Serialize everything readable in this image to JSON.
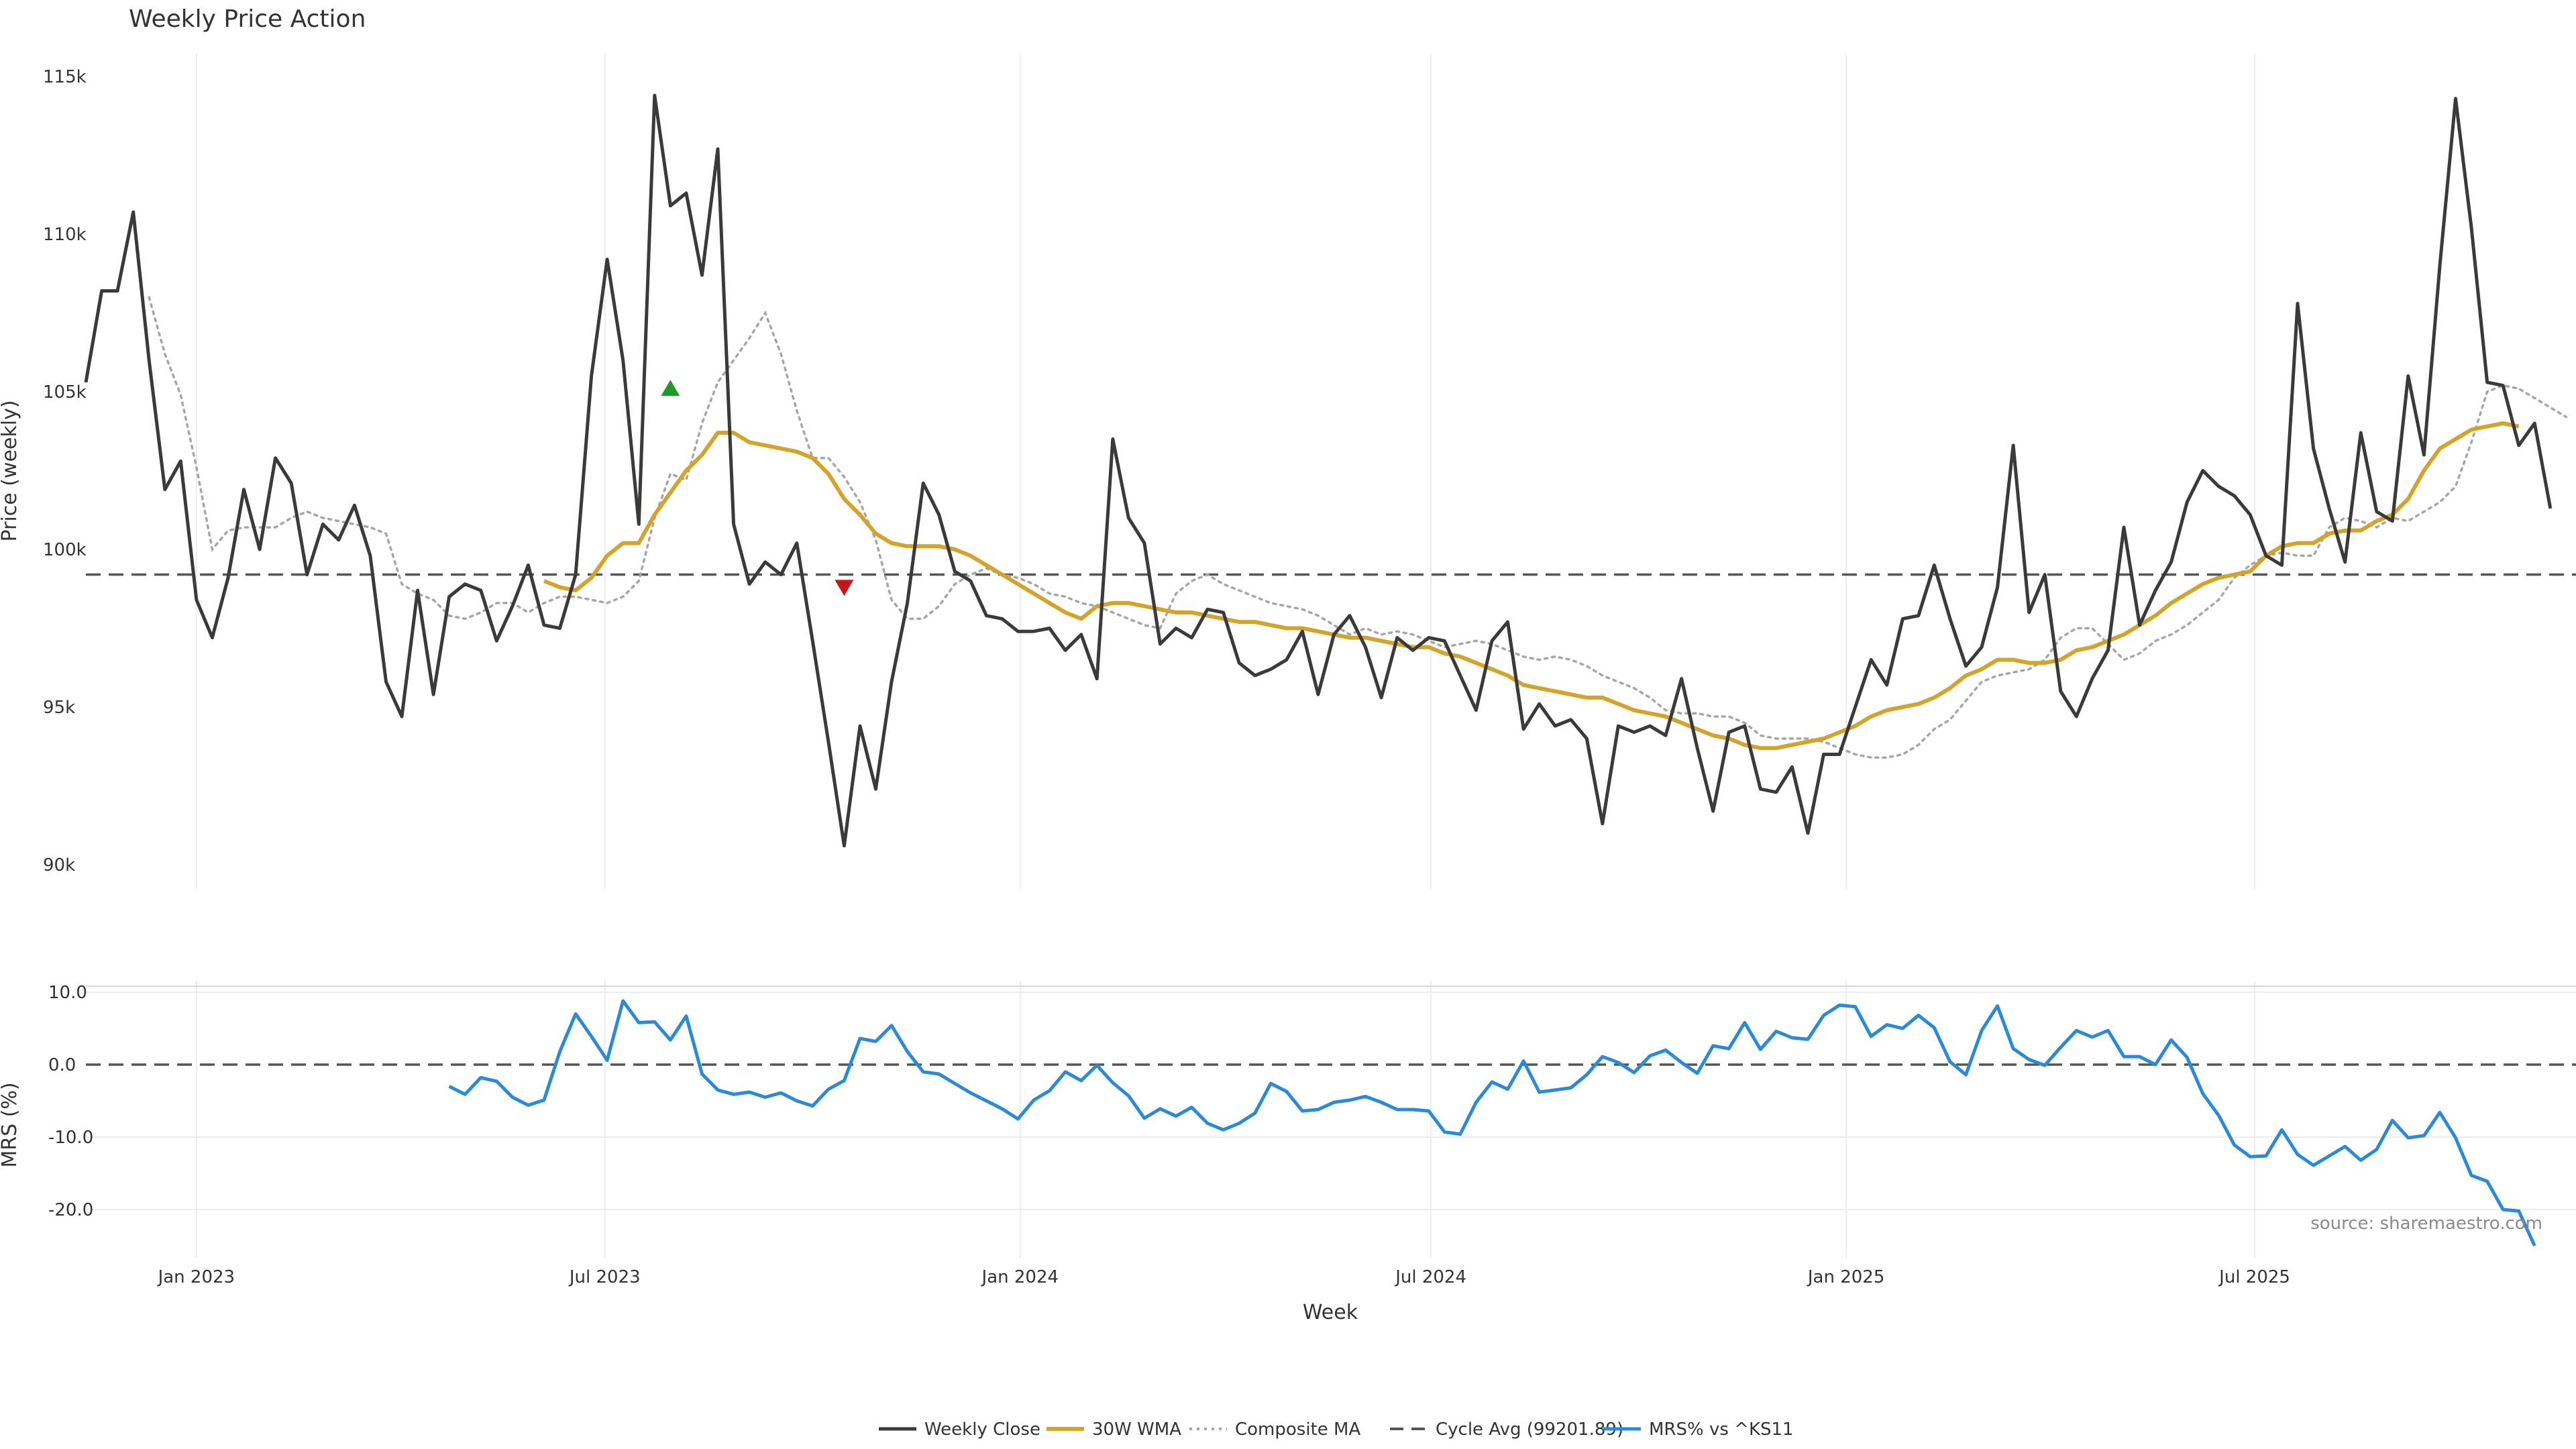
{
  "colors": {
    "close": "#3a3a3a",
    "wma": "#d4a32a",
    "composite": "#a6a6a6",
    "cycle": "#555555",
    "mrs": "#2a8ad8",
    "buy_marker": "#1f9a2a",
    "sell_marker": "#c8141b",
    "grid": "#ececec"
  },
  "chart_data": [
    {
      "type": "line",
      "title": "Weekly Price Action",
      "xlabel": "",
      "ylabel": "Price (weekly)",
      "x_start": "2022-11-13",
      "x_step_days": 7,
      "xlim": [
        "2022-11-13",
        "2025-11-09"
      ],
      "ylim": [
        89000,
        116000
      ],
      "yticks": [
        90000,
        95000,
        100000,
        105000,
        110000,
        115000
      ],
      "ytick_labels": [
        "90k",
        "95k",
        "100k",
        "105k",
        "110k",
        "115k"
      ],
      "xtick_dates": [
        "2023-01-01",
        "2023-07-01",
        "2024-01-01",
        "2024-07-01",
        "2025-01-01",
        "2025-07-01"
      ],
      "xtick_labels": [
        "Jan 2023",
        "Jul 2023",
        "Jan 2024",
        "Jul 2024",
        "Jan 2025",
        "Jul 2025"
      ],
      "grid": true,
      "series": [
        {
          "name": "Weekly Close",
          "values": [
            105300,
            108200,
            108200,
            110700,
            106000,
            101900,
            102800,
            98400,
            97200,
            99100,
            101900,
            100000,
            102900,
            102100,
            99200,
            100800,
            100300,
            101400,
            99800,
            95800,
            94700,
            98700,
            95400,
            98500,
            98900,
            98700,
            97100,
            98200,
            99500,
            97600,
            97500,
            99200,
            105500,
            109200,
            106000,
            100800,
            114400,
            110900,
            111300,
            108700,
            112700,
            100800,
            98900,
            99600,
            99200,
            100200,
            97100,
            93900,
            90600,
            94400,
            92400,
            95800,
            98300,
            102100,
            101100,
            99300,
            99000,
            97900,
            97800,
            97400,
            97400,
            97500,
            96800,
            97300,
            95900,
            103500,
            101000,
            100200,
            97000,
            97500,
            97200,
            98100,
            98000,
            96400,
            96000,
            96200,
            96500,
            97400,
            95400,
            97300,
            97900,
            96900,
            95300,
            97200,
            96800,
            97200,
            97100,
            96000,
            94900,
            97100,
            97700,
            94300,
            95100,
            94400,
            94600,
            94000,
            91300,
            94400,
            94200,
            94400,
            94100,
            95900,
            93700,
            91700,
            94200,
            94400,
            92400,
            92300,
            93100,
            91000,
            93500,
            93500,
            95000,
            96500,
            95700,
            97800,
            97900,
            99500,
            97800,
            96300,
            96900,
            98800,
            103300,
            98000,
            99200,
            95500,
            94700,
            95900,
            96800,
            100700,
            97600,
            98700,
            99600,
            101500,
            102500,
            102000,
            101700,
            101100,
            99800,
            99500,
            107800,
            103200,
            101300,
            99600,
            103700,
            101200,
            100900,
            105500,
            103000,
            109000,
            114300,
            110200,
            105300,
            105200,
            103300,
            104000,
            101300
          ]
        },
        {
          "name": "30W WMA",
          "start_index": 29,
          "values": [
            99000,
            98800,
            98700,
            99100,
            99800,
            100200,
            100200,
            101100,
            101800,
            102500,
            103000,
            103700,
            103700,
            103400,
            103300,
            103200,
            103100,
            102900,
            102400,
            101600,
            101100,
            100500,
            100200,
            100100,
            100100,
            100100,
            100000,
            99800,
            99500,
            99200,
            98900,
            98600,
            98300,
            98000,
            97800,
            98200,
            98300,
            98300,
            98200,
            98100,
            98000,
            98000,
            97900,
            97800,
            97700,
            97700,
            97600,
            97500,
            97500,
            97400,
            97300,
            97200,
            97200,
            97100,
            97000,
            96900,
            96900,
            96700,
            96600,
            96400,
            96200,
            96000,
            95700,
            95600,
            95500,
            95400,
            95300,
            95300,
            95100,
            94900,
            94800,
            94700,
            94500,
            94300,
            94100,
            94000,
            93800,
            93700,
            93700,
            93800,
            93900,
            94000,
            94200,
            94400,
            94700,
            94900,
            95000,
            95100,
            95300,
            95600,
            96000,
            96200,
            96500,
            96500,
            96400,
            96400,
            96500,
            96800,
            96900,
            97100,
            97300,
            97600,
            97900,
            98300,
            98600,
            98900,
            99100,
            99200,
            99300,
            99800,
            100100,
            100200,
            100200,
            100500,
            100600,
            100600,
            100900,
            101100,
            101600,
            102500,
            103200,
            103500,
            103800,
            103900,
            104000,
            103900
          ]
        },
        {
          "name": "Composite MA",
          "start_index": 4,
          "values": [
            108000,
            106200,
            104900,
            102600,
            100000,
            100600,
            100700,
            100700,
            100700,
            101000,
            101200,
            101000,
            100900,
            100800,
            100700,
            100500,
            98900,
            98600,
            98400,
            97900,
            97800,
            98000,
            98300,
            98300,
            98000,
            98300,
            98500,
            98500,
            98400,
            98300,
            98500,
            99000,
            101000,
            102400,
            102200,
            104000,
            105300,
            106000,
            106700,
            107500,
            106200,
            104400,
            102900,
            102900,
            102300,
            101500,
            100300,
            98400,
            97800,
            97800,
            98200,
            98900,
            99200,
            99400,
            99200,
            99100,
            98900,
            98600,
            98500,
            98300,
            98200,
            98000,
            97800,
            97600,
            97500,
            98600,
            99000,
            99200,
            98900,
            98700,
            98500,
            98300,
            98200,
            98100,
            97900,
            97600,
            97300,
            97500,
            97300,
            97400,
            97300,
            97100,
            96900,
            97000,
            97100,
            97000,
            96800,
            96600,
            96500,
            96600,
            96500,
            96300,
            96000,
            95800,
            95600,
            95300,
            94900,
            94800,
            94800,
            94700,
            94700,
            94500,
            94100,
            94000,
            94000,
            94000,
            93900,
            93700,
            93500,
            93400,
            93400,
            93500,
            93800,
            94300,
            94600,
            95200,
            95800,
            96000,
            96100,
            96200,
            96500,
            97200,
            97500,
            97500,
            97000,
            96500,
            96700,
            97100,
            97300,
            97600,
            98000,
            98400,
            99100,
            99500,
            99800,
            99900,
            99800,
            99800,
            100700,
            101000,
            100900,
            100700,
            101000,
            100900,
            101200,
            101500,
            102000,
            103400,
            105000,
            105200,
            105100,
            104800,
            104500,
            104200
          ]
        },
        {
          "name": "Cycle Avg (99201.89)",
          "values": [
            99201.89
          ]
        }
      ],
      "markers": [
        {
          "index": 37,
          "value": 105100,
          "direction": "up"
        },
        {
          "index": 48,
          "value": 98800,
          "direction": "down"
        }
      ]
    },
    {
      "type": "line",
      "xlabel": "Week",
      "ylabel": "MRS (%)",
      "x_start": "2022-11-13",
      "x_step_days": 7,
      "ylim": [
        -25,
        11
      ],
      "yticks": [
        -20,
        -10,
        0,
        10
      ],
      "ytick_labels": [
        "-20.0",
        "-10.0",
        "0.0",
        "10.0"
      ],
      "series": [
        {
          "name": "MRS% vs ^KS11",
          "start_index": 23,
          "values": [
            -3.0,
            -4.1,
            -1.8,
            -2.3,
            -4.5,
            -5.6,
            -4.9,
            1.8,
            7.0,
            3.9,
            0.6,
            8.8,
            5.8,
            5.9,
            3.4,
            6.7,
            -1.3,
            -3.5,
            -4.1,
            -3.8,
            -4.5,
            -3.9,
            -5.0,
            -5.7,
            -3.4,
            -2.2,
            3.6,
            3.2,
            5.4,
            1.8,
            -1.0,
            -1.3,
            -2.6,
            -3.9,
            -5.0,
            -6.1,
            -7.5,
            -4.9,
            -3.6,
            -1.0,
            -2.2,
            -0.1,
            -2.5,
            -4.3,
            -7.4,
            -6.1,
            -7.1,
            -5.9,
            -8.1,
            -9.0,
            -8.1,
            -6.7,
            -2.6,
            -3.7,
            -6.4,
            -6.2,
            -5.2,
            -4.9,
            -4.4,
            -5.2,
            -6.2,
            -6.2,
            -6.4,
            -9.3,
            -9.6,
            -5.2,
            -2.4,
            -3.4,
            0.5,
            -3.8,
            -3.5,
            -3.2,
            -1.4,
            1.1,
            0.3,
            -1.1,
            1.2,
            2.0,
            0.3,
            -1.2,
            2.6,
            2.2,
            5.8,
            2.1,
            4.6,
            3.7,
            3.5,
            6.8,
            8.2,
            8.0,
            3.9,
            5.5,
            5.0,
            6.8,
            5.1,
            0.4,
            -1.4,
            4.7,
            8.1,
            2.2,
            0.7,
            -0.1,
            2.4,
            4.7,
            3.8,
            4.7,
            1.1,
            1.1,
            0.0,
            3.4,
            1.0,
            -4.0,
            -7.0,
            -11.1,
            -12.7,
            -12.6,
            -9.0,
            -12.4,
            -13.9,
            -12.6,
            -11.3,
            -13.2,
            -11.7,
            -7.7,
            -10.1,
            -9.8,
            -6.6,
            -10.1,
            -15.3,
            -16.1,
            -20.0,
            -20.2,
            -25.0
          ]
        },
        {
          "name": "",
          "values": [
            0
          ]
        }
      ]
    }
  ],
  "annotation": {
    "source": "source: sharemaestro.com"
  },
  "legend": {
    "position": "bottom-center",
    "items": [
      {
        "label": "Weekly Close",
        "style": "solid-dark"
      },
      {
        "label": "30W WMA",
        "style": "solid-gold"
      },
      {
        "label": "Composite MA",
        "style": "dotted-gray"
      },
      {
        "label": "Cycle Avg (99201.89)",
        "style": "dashed-dark"
      },
      {
        "label": "MRS% vs ^KS11",
        "style": "solid-blue"
      }
    ]
  }
}
